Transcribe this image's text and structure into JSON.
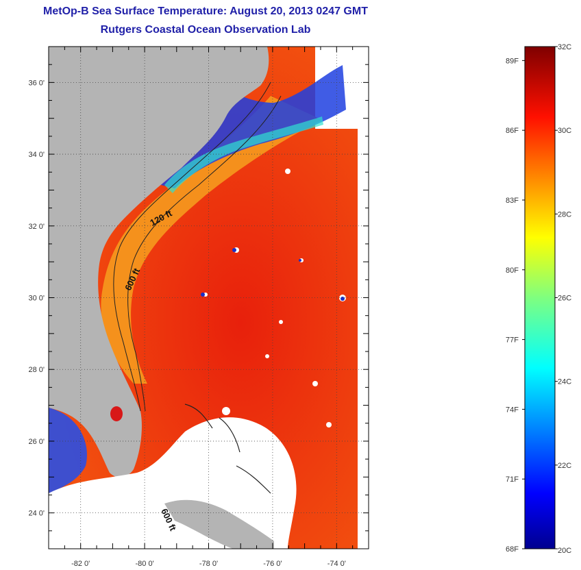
{
  "header": {
    "title": "MetOp-B Sea Surface Temperature:  August 20, 2013 0247 GMT",
    "subtitle": "Rutgers Coastal Ocean Observation Lab"
  },
  "map": {
    "lon_range": [
      -83,
      -73
    ],
    "lat_range": [
      23,
      37
    ],
    "lat_ticks": [
      {
        "value": 36,
        "label": "36 0'"
      },
      {
        "value": 34,
        "label": "34 0'"
      },
      {
        "value": 32,
        "label": "32 0'"
      },
      {
        "value": 30,
        "label": "30 0'"
      },
      {
        "value": 28,
        "label": "28 0'"
      },
      {
        "value": 26,
        "label": "26 0'"
      },
      {
        "value": 24,
        "label": "24 0'"
      }
    ],
    "lon_ticks": [
      {
        "value": -82,
        "label": "-82 0'"
      },
      {
        "value": -80,
        "label": "-80 0'"
      },
      {
        "value": -78,
        "label": "-78 0'"
      },
      {
        "value": -76,
        "label": "-76 0'"
      },
      {
        "value": -74,
        "label": "-74 0'"
      }
    ],
    "contour_labels": [
      "120 ft",
      "600 ft",
      "600 ft"
    ],
    "colors": {
      "land": "#b4b4b4",
      "ocean_warm": "#ee3a10",
      "cloud": "#ffffff"
    }
  },
  "colorbar": {
    "min_c": 20,
    "max_c": 32,
    "celsius_labels": [
      {
        "value": 32,
        "label": "32C"
      },
      {
        "value": 30,
        "label": "30C"
      },
      {
        "value": 28,
        "label": "28C"
      },
      {
        "value": 26,
        "label": "26C"
      },
      {
        "value": 24,
        "label": "24C"
      },
      {
        "value": 22,
        "label": "22C"
      },
      {
        "value": 20,
        "label": "20C"
      }
    ],
    "fahrenheit_labels": [
      {
        "value": 89,
        "label": "89F"
      },
      {
        "value": 86,
        "label": "86F"
      },
      {
        "value": 83,
        "label": "83F"
      },
      {
        "value": 80,
        "label": "80F"
      },
      {
        "value": 77,
        "label": "77F"
      },
      {
        "value": 74,
        "label": "74F"
      },
      {
        "value": 71,
        "label": "71F"
      },
      {
        "value": 68,
        "label": "68F"
      }
    ]
  }
}
